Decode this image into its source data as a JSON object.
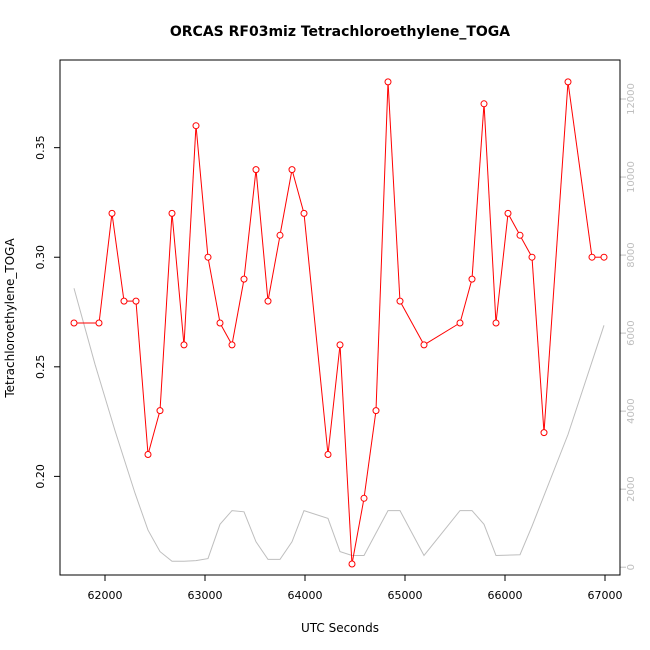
{
  "chart_data": {
    "type": "line",
    "title": "ORCAS RF03miz Tetrachloroethylene_TOGA",
    "xlabel": "UTC Seconds",
    "ylabel": "Tetrachloroethylene_TOGA",
    "xlim": [
      61550,
      67150
    ],
    "ylim": [
      0.155,
      0.39
    ],
    "y2lim": [
      -200,
      13000
    ],
    "xticks": [
      62000,
      63000,
      64000,
      65000,
      66000,
      67000
    ],
    "yticks": [
      0.2,
      0.25,
      0.3,
      0.35
    ],
    "ytick_labels": [
      "0.20",
      "0.25",
      "0.30",
      "0.35"
    ],
    "y2ticks": [
      0,
      2000,
      4000,
      6000,
      8000,
      10000,
      12000
    ],
    "grid": false,
    "colors": {
      "primary": "#ff0000",
      "secondary": "#bebebe",
      "frame": "#000000"
    },
    "series": [
      {
        "axis": "left",
        "style": "line+open-circle",
        "x": [
          61690,
          61940,
          62070,
          62190,
          62310,
          62430,
          62550,
          62670,
          62790,
          62910,
          63030,
          63150,
          63270,
          63390,
          63510,
          63630,
          63750,
          63870,
          63990,
          64230,
          64350,
          64470,
          64590,
          64710,
          64830,
          64950,
          65190,
          65550,
          65670,
          65790,
          65910,
          66030,
          66150,
          66270,
          66390,
          66630,
          66870,
          66990
        ],
        "y": [
          0.27,
          0.27,
          0.32,
          0.28,
          0.28,
          0.21,
          0.23,
          0.32,
          0.26,
          0.36,
          0.3,
          0.27,
          0.26,
          0.29,
          0.34,
          0.28,
          0.31,
          0.34,
          0.32,
          0.21,
          0.26,
          0.16,
          0.19,
          0.23,
          0.38,
          0.28,
          0.26,
          0.27,
          0.29,
          0.37,
          0.27,
          0.32,
          0.31,
          0.3,
          0.22,
          0.38,
          0.3,
          0.3
        ]
      },
      {
        "axis": "right",
        "style": "line",
        "x": [
          61690,
          61900,
          62100,
          62300,
          62430,
          62550,
          62670,
          62790,
          62910,
          63030,
          63150,
          63270,
          63390,
          63510,
          63630,
          63750,
          63870,
          63990,
          64230,
          64350,
          64470,
          64590,
          64830,
          64950,
          65190,
          65550,
          65670,
          65790,
          65910,
          66150,
          66270,
          66630,
          66990
        ],
        "y": [
          7150,
          5200,
          3500,
          1900,
          950,
          400,
          150,
          150,
          170,
          220,
          1100,
          1450,
          1420,
          650,
          200,
          200,
          650,
          1450,
          1250,
          400,
          300,
          300,
          1450,
          1450,
          300,
          1450,
          1450,
          1100,
          300,
          320,
          1050,
          3400,
          6200
        ]
      }
    ]
  }
}
